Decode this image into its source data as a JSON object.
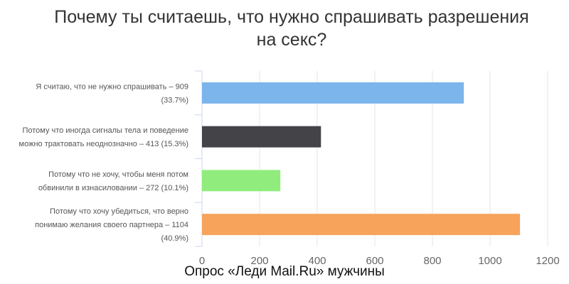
{
  "chart_data": {
    "type": "bar",
    "orientation": "horizontal",
    "title": "Почему ты считаешь, что нужно спрашивать разрешения на секс?",
    "title_lines": [
      "Почему ты считаешь, что нужно спрашивать разрешения",
      "на секс?"
    ],
    "categories": [
      "Я считаю, что не нужно спрашивать – 909 (33.7%)",
      "Потому что иногда сигналы тела и поведение можно трактовать неоднозначно – 413 (15.3%)",
      "Потому что не хочу, чтобы меня потом обвинили в изнасиловании – 272 (10.1%)",
      "Потому что хочу убедиться, что верно понимаю желания своего партнера – 1104 (40.9%)"
    ],
    "category_lines": [
      [
        "Я считаю, что не нужно спрашивать – 909",
        "(33.7%)"
      ],
      [
        "Потому что иногда сигналы тела и поведение",
        "можно трактовать неоднозначно – 413 (15.3%)"
      ],
      [
        "Потому что не хочу, чтобы меня потом",
        "обвинили в изнасиловании – 272 (10.1%)"
      ],
      [
        "Потому что хочу убедиться, что верно",
        "понимаю желания своего партнера – 1104",
        "(40.9%)"
      ]
    ],
    "values": [
      909,
      413,
      272,
      1104
    ],
    "colors": [
      "#7cb5ec",
      "#434348",
      "#90ed7d",
      "#f7a35c"
    ],
    "xlim": [
      0,
      1200
    ],
    "ticks": [
      0,
      200,
      400,
      600,
      800,
      1000,
      1200
    ],
    "grid": true,
    "xlabel": "",
    "ylabel": ""
  },
  "footer": "Опрос «Леди Mail.Ru» мужчины"
}
